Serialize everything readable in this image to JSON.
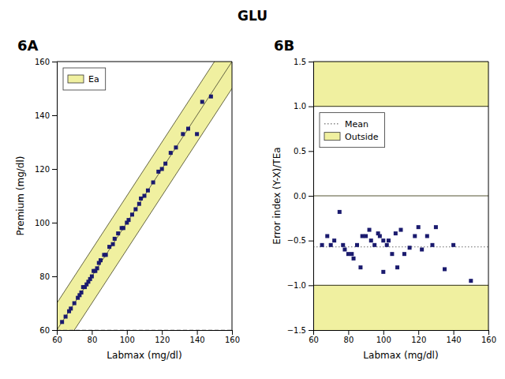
{
  "title": "GLU",
  "chart_data": [
    {
      "type": "scatter",
      "title": "6A",
      "x_label": "Labmax (mg/dl)",
      "y_label": "Premium  (mg/dl)",
      "xlim": [
        60,
        160
      ],
      "ylim": [
        60,
        160
      ],
      "xticks": [
        60,
        80,
        100,
        120,
        140,
        160
      ],
      "yticks": [
        60,
        80,
        100,
        120,
        140,
        160
      ],
      "color": "#1a1a6e",
      "marker": "square",
      "legend": "upper left",
      "diagonal_band": {
        "name": "Ea",
        "offset": 10,
        "color": "#f0f0a0",
        "line_color": "#666644"
      },
      "hlines": [
        {
          "y": 60,
          "color": "#aaaaaa",
          "line_style": "dashed"
        }
      ],
      "x": [
        63,
        65,
        67,
        68,
        70,
        72,
        73,
        74,
        75,
        76,
        77,
        78,
        79,
        80,
        81,
        82,
        83,
        84,
        85,
        87,
        88,
        90,
        92,
        93,
        95,
        97,
        98,
        100,
        101,
        103,
        105,
        107,
        108,
        110,
        112,
        115,
        118,
        120,
        122,
        125,
        128,
        132,
        135,
        140,
        143,
        148
      ],
      "values": [
        63,
        65,
        67,
        68,
        70,
        72,
        73,
        74,
        76,
        76,
        77,
        78,
        79,
        80,
        82,
        82,
        83,
        85,
        86,
        88,
        88,
        91,
        92,
        94,
        96,
        98,
        98,
        100,
        101,
        103,
        105,
        107,
        109,
        110,
        112,
        115,
        119,
        120,
        122,
        126,
        128,
        133,
        135,
        133,
        145,
        147
      ]
    },
    {
      "type": "scatter",
      "title": "6B",
      "x_label": "Labmax (mg/dl)",
      "y_label": "Error index (Y-X)/TEa",
      "xlim": [
        60,
        160
      ],
      "ylim": [
        -1.5,
        1.5
      ],
      "xticks": [
        60,
        80,
        100,
        120,
        140,
        160
      ],
      "yticks": [
        {
          "value": -1.5,
          "label": "−1.5"
        },
        {
          "value": -1.0,
          "label": "−1.0"
        },
        {
          "value": -0.5,
          "label": "−0.5"
        },
        {
          "value": 0,
          "label": "0.0"
        },
        {
          "value": 0.5,
          "label": "0.5"
        },
        {
          "value": 1.0,
          "label": "1.0"
        },
        {
          "value": 1.5,
          "label": "1.5"
        }
      ],
      "color": "#1a1a6e",
      "marker": "square",
      "legend": "upper left",
      "bands": [
        {
          "y": [
            1.0,
            1.5
          ],
          "name": "Outside",
          "color": "#f0f0a0"
        },
        {
          "y": [
            -1.5,
            -1.0
          ],
          "color": "#f0f0a0"
        }
      ],
      "hlines": [
        {
          "y": 0,
          "color": "#555533"
        },
        {
          "y": 1.0,
          "color": "#555533"
        },
        {
          "y": -1.0,
          "color": "#555533"
        },
        {
          "y": -0.57,
          "name": "Mean",
          "color": "#888888",
          "line_style": "dotted"
        }
      ],
      "x": [
        65,
        68,
        70,
        72,
        75,
        77,
        78,
        80,
        82,
        83,
        85,
        87,
        88,
        90,
        92,
        93,
        95,
        97,
        98,
        100,
        100,
        102,
        103,
        105,
        107,
        108,
        110,
        112,
        115,
        118,
        120,
        122,
        125,
        128,
        130,
        135,
        140,
        150
      ],
      "values": [
        -0.55,
        -0.45,
        -0.55,
        -0.5,
        -0.18,
        -0.55,
        -0.6,
        -0.65,
        -0.65,
        -0.7,
        -0.55,
        -0.8,
        -0.45,
        -0.45,
        -0.38,
        -0.5,
        -0.55,
        -0.42,
        -0.45,
        -0.5,
        -0.85,
        -0.55,
        -0.5,
        -0.65,
        -0.42,
        -0.8,
        -0.38,
        -0.65,
        -0.58,
        -0.45,
        -0.35,
        -0.6,
        -0.45,
        -0.55,
        -0.35,
        -0.82,
        -0.55,
        -0.95
      ]
    }
  ]
}
